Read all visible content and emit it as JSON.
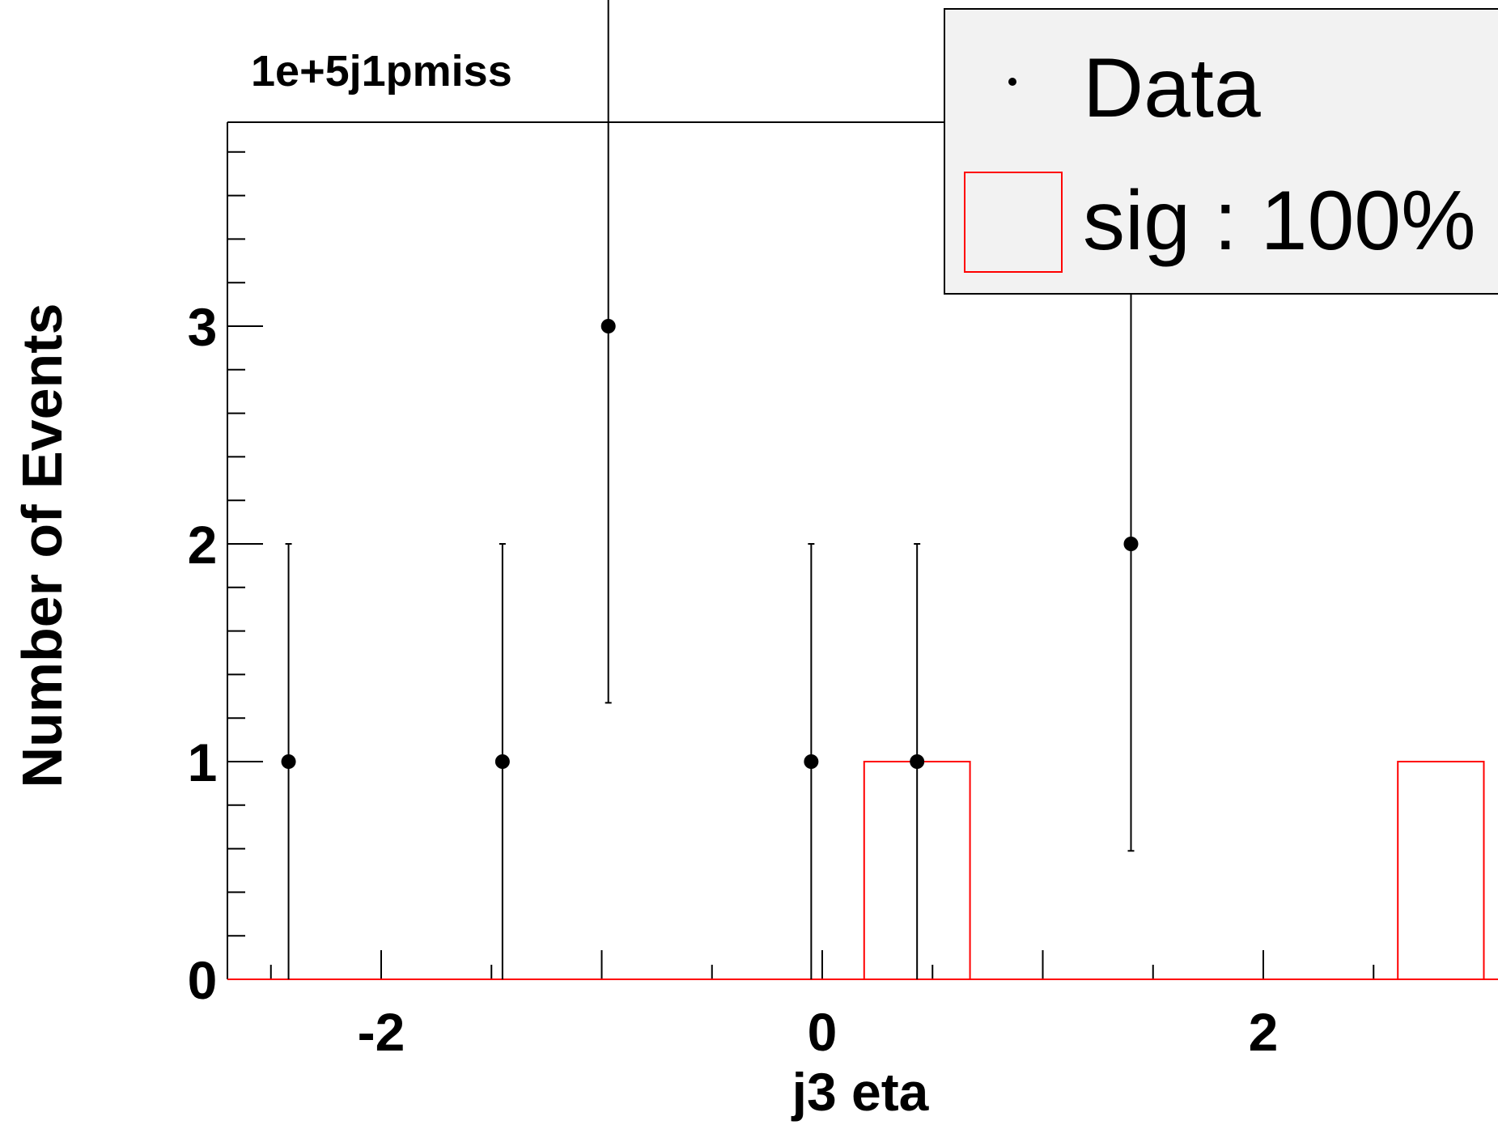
{
  "chart_data": {
    "type": "scatter",
    "title": "1e+5j1pmiss",
    "xlabel": "j3 eta",
    "ylabel": "Number of Events",
    "xlim": [
      -2.5,
      3.0
    ],
    "ylim": [
      0,
      3.8
    ],
    "x_ticks": [
      "-2",
      "0",
      "2"
    ],
    "y_ticks": [
      "0",
      "1",
      "2",
      "3"
    ],
    "legend_position": "top-right",
    "series": [
      {
        "name": "Data",
        "style": "points-with-error-bars",
        "color": "#000000",
        "points": [
          {
            "x": -2.42,
            "y": 1,
            "err_low": 1,
            "err_high": 1
          },
          {
            "x": -1.45,
            "y": 1,
            "err_low": 1,
            "err_high": 1
          },
          {
            "x": -0.97,
            "y": 3,
            "err_low": 1.73,
            "err_high": 1.73
          },
          {
            "x": -0.05,
            "y": 1,
            "err_low": 1,
            "err_high": 1
          },
          {
            "x": 0.43,
            "y": 1,
            "err_low": 1,
            "err_high": 1
          },
          {
            "x": 1.4,
            "y": 2,
            "err_low": 1.41,
            "err_high": 1.41
          }
        ]
      },
      {
        "name": "sig : 100%",
        "style": "step-histogram",
        "color": "#ff0000",
        "bins": [
          {
            "x_low": 0.19,
            "x_high": 0.67,
            "y": 1
          },
          {
            "x_low": 2.61,
            "x_high": 3.0,
            "y": 1
          }
        ]
      }
    ]
  }
}
